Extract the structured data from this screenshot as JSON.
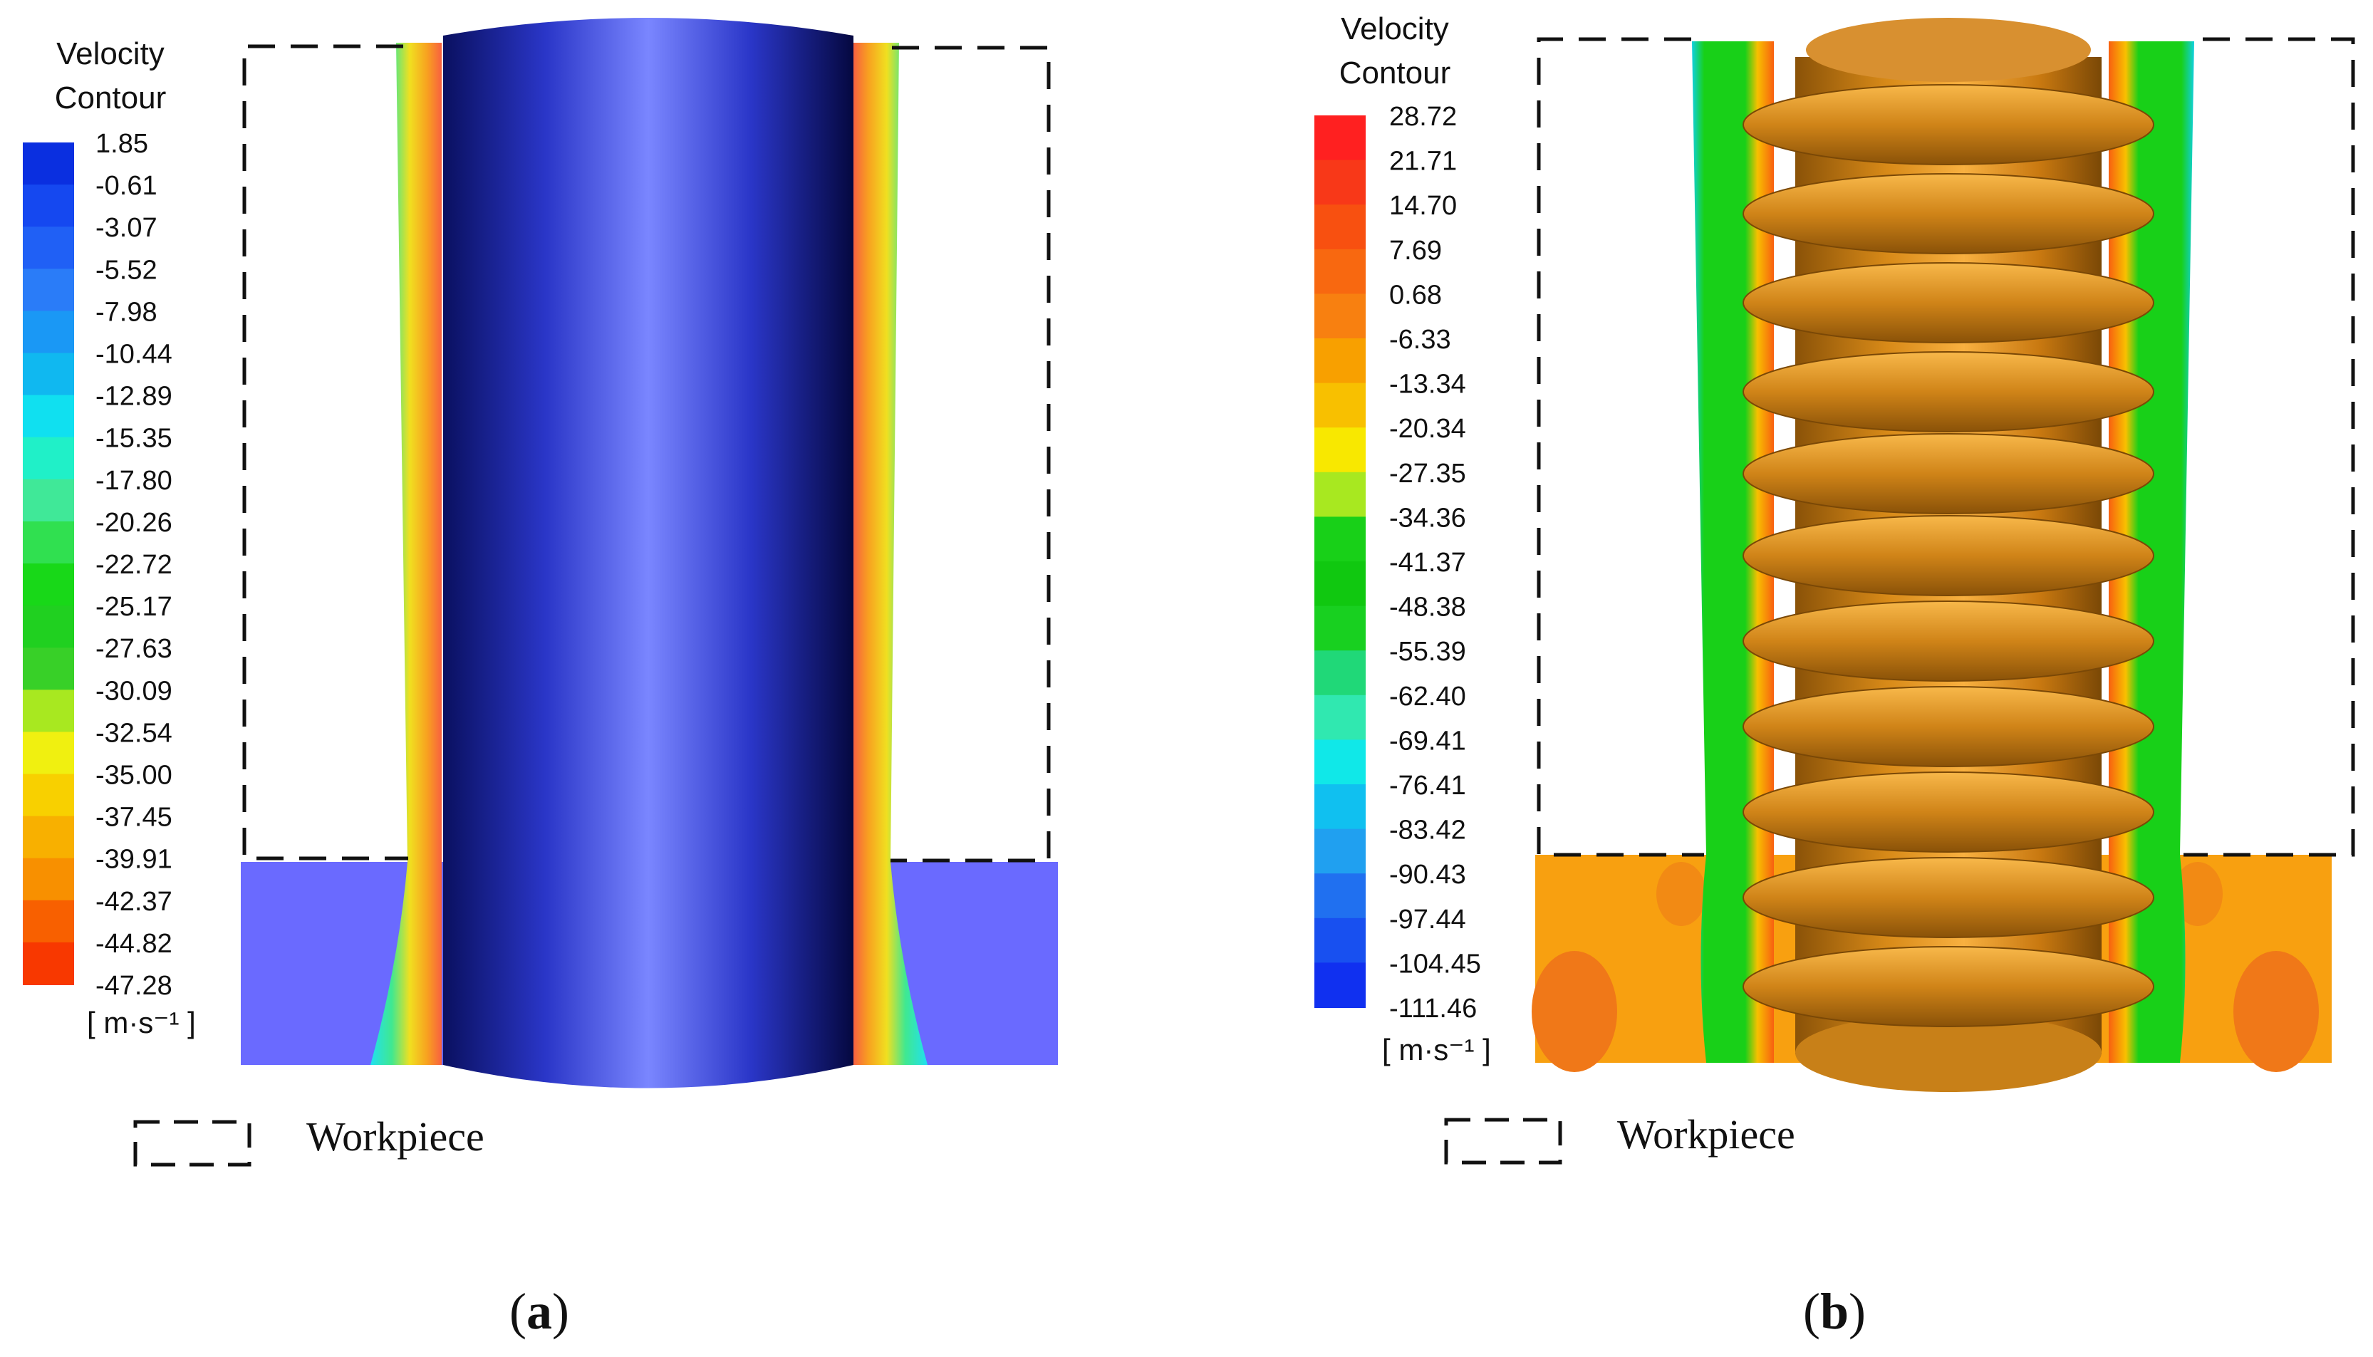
{
  "panel_a": {
    "legend_title_line1": "Velocity",
    "legend_title_line2": "Contour",
    "levels": [
      "1.85",
      "-0.61",
      "-3.07",
      "-5.52",
      "-7.98",
      "-10.44",
      "-12.89",
      "-15.35",
      "-17.80",
      "-20.26",
      "-22.72",
      "-25.17",
      "-27.63",
      "-30.09",
      "-32.54",
      "-35.00",
      "-37.45",
      "-39.91",
      "-42.37",
      "-44.82",
      "-47.28"
    ],
    "colors": [
      "#0a2fe0",
      "#1548f0",
      "#2060f5",
      "#2a7cf8",
      "#1a98f5",
      "#10b8f0",
      "#10e0f0",
      "#20f0c8",
      "#40e898",
      "#30e050",
      "#18d818",
      "#20d020",
      "#38d028",
      "#a8e820",
      "#f0f010",
      "#f8d000",
      "#f8b000",
      "#f89000",
      "#f86000",
      "#f83800",
      "#ff1010"
    ],
    "unit": "[ m·s⁻¹ ]",
    "workpiece_label": "Workpiece",
    "caption_open": "(",
    "caption_letter": "a",
    "caption_close": ")"
  },
  "panel_b": {
    "legend_title_line1": "Velocity",
    "legend_title_line2": "Contour",
    "levels": [
      "28.72",
      "21.71",
      "14.70",
      "7.69",
      "0.68",
      "-6.33",
      "-13.34",
      "-20.34",
      "-27.35",
      "-34.36",
      "-41.37",
      "-48.38",
      "-55.39",
      "-62.40",
      "-69.41",
      "-76.41",
      "-83.42",
      "-90.43",
      "-97.44",
      "-104.45",
      "-111.46"
    ],
    "colors": [
      "#ff2020",
      "#f83818",
      "#f85010",
      "#f86810",
      "#f88010",
      "#f8a000",
      "#f8c000",
      "#f8e800",
      "#a8e820",
      "#18d018",
      "#10c810",
      "#18d020",
      "#20d878",
      "#30e8b0",
      "#10e8e8",
      "#10c0f0",
      "#20a0f0",
      "#2070f0",
      "#1850f0",
      "#1030f0",
      "#0010f0"
    ],
    "unit": "[ m·s⁻¹ ]",
    "workpiece_label": "Workpiece",
    "caption_open": "(",
    "caption_letter": "b",
    "caption_close": ")"
  }
}
